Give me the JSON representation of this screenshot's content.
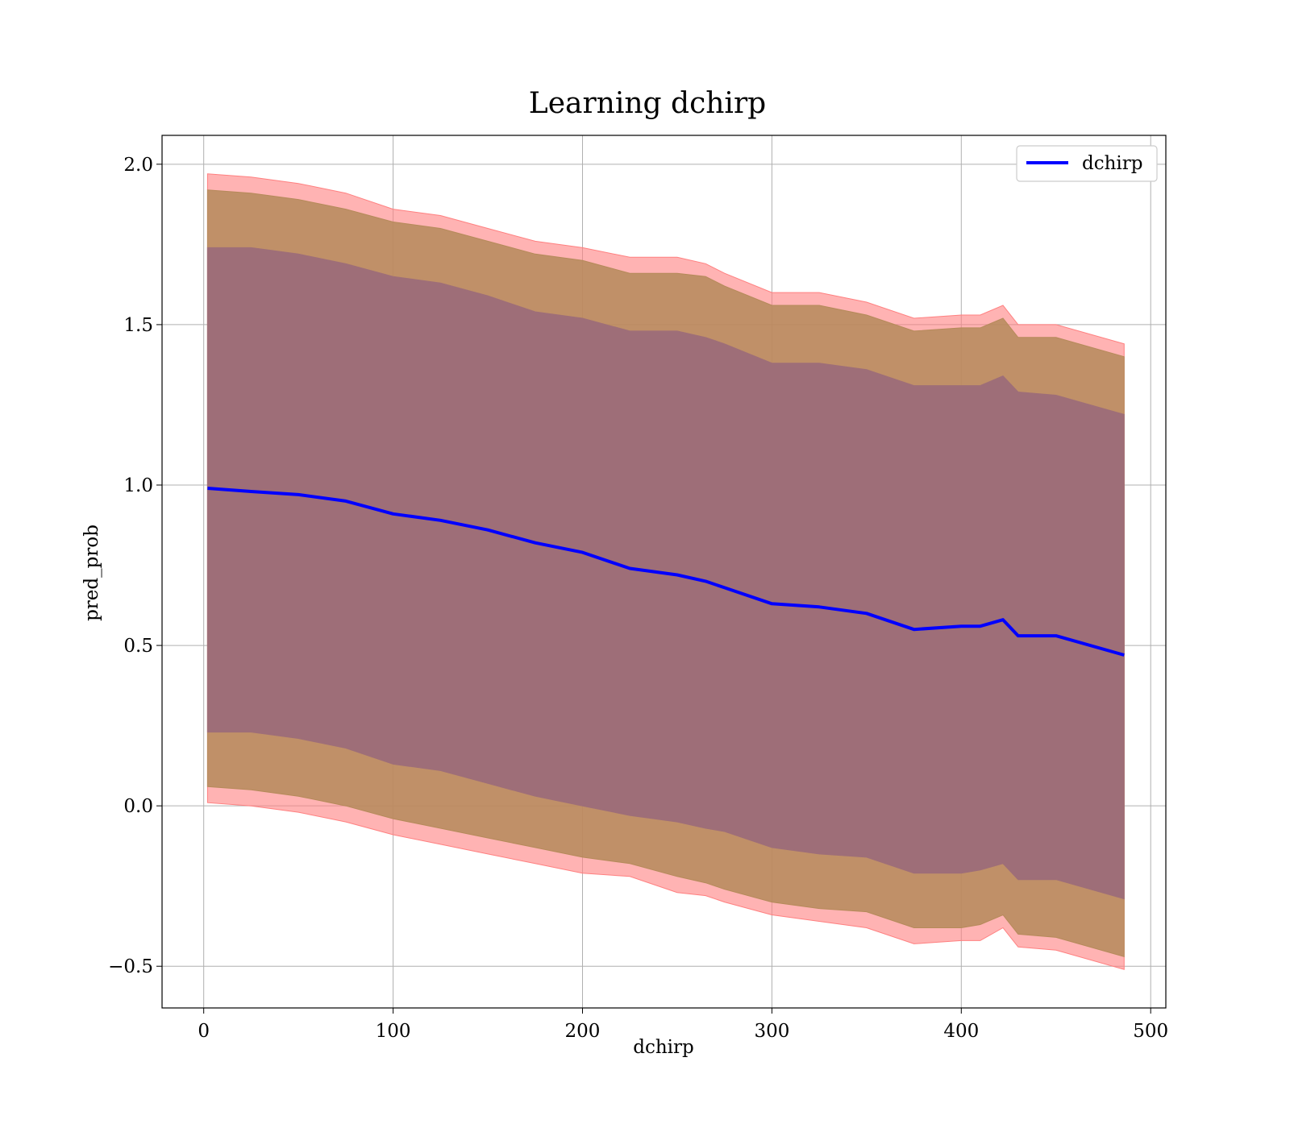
{
  "chart_data": {
    "type": "line",
    "title": "Learning dchirp",
    "xlabel": "dchirp",
    "ylabel": "pred_prob",
    "xlim": [
      -22,
      508
    ],
    "ylim": [
      -0.63,
      2.09
    ],
    "xticks": [
      0,
      100,
      200,
      300,
      400,
      500
    ],
    "xtick_labels": [
      "0",
      "100",
      "200",
      "300",
      "400",
      "500"
    ],
    "yticks": [
      -0.5,
      0.0,
      0.5,
      1.0,
      1.5,
      2.0
    ],
    "ytick_labels": [
      "−0.5",
      "0.0",
      "0.5",
      "1.0",
      "1.5",
      "2.0"
    ],
    "grid": true,
    "legend_position": "upper right",
    "colors": {
      "line": "#0000ff",
      "band_outer": "#ff8080",
      "band_middle": "#b58a5a",
      "band_inner": "#9e6e78"
    },
    "x": [
      2,
      25,
      50,
      75,
      100,
      125,
      150,
      175,
      200,
      225,
      250,
      265,
      275,
      300,
      325,
      350,
      375,
      400,
      410,
      422,
      430,
      450,
      486
    ],
    "series": [
      {
        "name": "dchirp",
        "values": [
          0.99,
          0.98,
          0.97,
          0.95,
          0.91,
          0.89,
          0.86,
          0.82,
          0.79,
          0.74,
          0.72,
          0.7,
          0.68,
          0.63,
          0.62,
          0.6,
          0.55,
          0.56,
          0.56,
          0.58,
          0.53,
          0.53,
          0.47
        ]
      }
    ],
    "bands": [
      {
        "level": "outer",
        "upper": [
          1.97,
          1.96,
          1.94,
          1.91,
          1.86,
          1.84,
          1.8,
          1.76,
          1.74,
          1.71,
          1.71,
          1.69,
          1.66,
          1.6,
          1.6,
          1.57,
          1.52,
          1.53,
          1.53,
          1.56,
          1.5,
          1.5,
          1.44
        ],
        "lower": [
          0.01,
          0.0,
          -0.02,
          -0.05,
          -0.09,
          -0.12,
          -0.15,
          -0.18,
          -0.21,
          -0.22,
          -0.27,
          -0.28,
          -0.3,
          -0.34,
          -0.36,
          -0.38,
          -0.43,
          -0.42,
          -0.42,
          -0.38,
          -0.44,
          -0.45,
          -0.51
        ]
      },
      {
        "level": "middle",
        "upper": [
          1.92,
          1.91,
          1.89,
          1.86,
          1.82,
          1.8,
          1.76,
          1.72,
          1.7,
          1.66,
          1.66,
          1.65,
          1.62,
          1.56,
          1.56,
          1.53,
          1.48,
          1.49,
          1.49,
          1.52,
          1.46,
          1.46,
          1.4
        ],
        "lower": [
          0.06,
          0.05,
          0.03,
          0.0,
          -0.04,
          -0.07,
          -0.1,
          -0.13,
          -0.16,
          -0.18,
          -0.22,
          -0.24,
          -0.26,
          -0.3,
          -0.32,
          -0.33,
          -0.38,
          -0.38,
          -0.37,
          -0.34,
          -0.4,
          -0.41,
          -0.47
        ]
      },
      {
        "level": "inner",
        "upper": [
          1.74,
          1.74,
          1.72,
          1.69,
          1.65,
          1.63,
          1.59,
          1.54,
          1.52,
          1.48,
          1.48,
          1.46,
          1.44,
          1.38,
          1.38,
          1.36,
          1.31,
          1.31,
          1.31,
          1.34,
          1.29,
          1.28,
          1.22
        ],
        "lower": [
          0.23,
          0.23,
          0.21,
          0.18,
          0.13,
          0.11,
          0.07,
          0.03,
          0.0,
          -0.03,
          -0.05,
          -0.07,
          -0.08,
          -0.13,
          -0.15,
          -0.16,
          -0.21,
          -0.21,
          -0.2,
          -0.18,
          -0.23,
          -0.23,
          -0.29
        ]
      }
    ]
  }
}
